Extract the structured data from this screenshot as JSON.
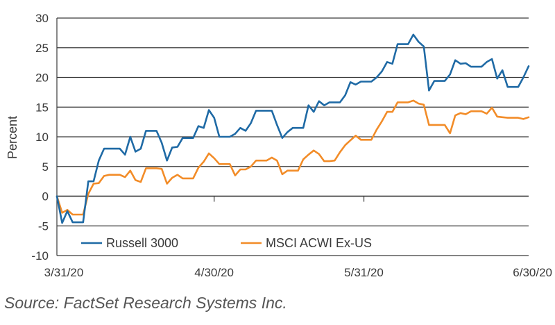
{
  "source": "Source: FactSet Research Systems Inc.",
  "colors": {
    "russell": "#1f6aa5",
    "msci": "#f28c28",
    "grid": "#3a3a3a",
    "text": "#3a3a3a"
  },
  "chart_data": {
    "type": "line",
    "title": "",
    "xlabel": "",
    "ylabel": "Percent",
    "ylim": [
      -10,
      30
    ],
    "yticks": [
      30,
      25,
      20,
      15,
      10,
      5,
      0,
      -5,
      -10
    ],
    "xticks": [
      {
        "label": "3/31/20",
        "x": 0
      },
      {
        "label": "4/30/20",
        "x": 21
      },
      {
        "label": "5/31/20",
        "x": 41
      },
      {
        "label": "6/30/20",
        "x": 63
      }
    ],
    "xlim": [
      0,
      63
    ],
    "grid": true,
    "legend": "bottom-left",
    "series": [
      {
        "name": "Russell 3000",
        "color": "#1f6aa5",
        "values": [
          0,
          -4.5,
          -2.5,
          -4.4,
          -4.4,
          -4.4,
          2.5,
          2.5,
          6,
          8,
          8,
          8,
          8,
          7,
          10,
          7.5,
          8,
          11,
          11,
          11,
          9,
          6,
          8.2,
          8.3,
          9.8,
          9.8,
          9.8,
          11.8,
          11.5,
          14.5,
          13.2,
          10,
          10,
          10,
          10.5,
          11.5,
          11,
          12.3,
          14.4,
          14.4,
          14.4,
          14.4,
          12,
          9.8,
          10.8,
          11.5,
          11.5,
          11.5,
          15.3,
          14.2,
          16,
          15.3,
          15.8,
          15.8,
          15.8,
          17,
          19.2,
          18.8,
          19.3,
          19.3,
          19.3,
          20,
          21,
          22.6,
          22.3,
          25.6,
          25.6,
          25.6,
          27.2,
          26,
          25.2,
          17.8,
          19.4,
          19.4,
          19.4,
          20.5,
          22.9,
          22.3,
          22.4,
          21.8,
          21.8,
          21.8,
          22.6,
          23.1,
          19.8,
          21.2,
          18.4,
          18.4,
          18.4,
          20,
          21.9
        ]
      },
      {
        "name": "MSCI ACWI Ex-US",
        "color": "#f28c28",
        "values": [
          0,
          -2.8,
          -2.3,
          -3.1,
          -3.1,
          -3.1,
          0.4,
          2.1,
          2.2,
          3.4,
          3.6,
          3.6,
          3.6,
          3.2,
          4.3,
          2.7,
          2.4,
          4.7,
          4.7,
          4.7,
          4.6,
          2.1,
          3.1,
          3.6,
          3,
          3,
          3,
          4.8,
          5.8,
          7.2,
          6.4,
          5.4,
          5.4,
          5.4,
          3.5,
          4.5,
          4.5,
          5,
          6,
          6,
          6,
          6.5,
          6,
          3.7,
          4.3,
          4.3,
          4.3,
          6.2,
          7,
          7.7,
          7.1,
          5.9,
          5.9,
          6,
          7.4,
          8.6,
          9.4,
          10.2,
          9.5,
          9.5,
          9.5,
          11.2,
          12.6,
          14.2,
          14.2,
          15.8,
          15.8,
          15.8,
          16.1,
          15.6,
          15.4,
          12,
          12,
          12,
          12,
          10.6,
          13.6,
          14,
          13.8,
          14.3,
          14.3,
          14.3,
          13.9,
          14.9,
          13.4,
          13.3,
          13.2,
          13.2,
          13.2,
          13,
          13.3
        ]
      }
    ]
  }
}
